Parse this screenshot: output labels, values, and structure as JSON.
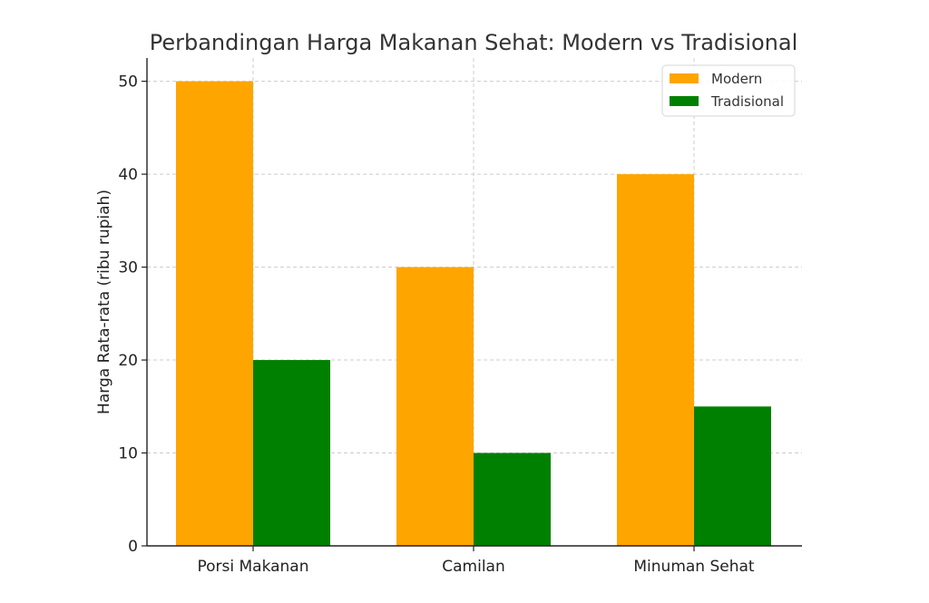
{
  "chart_data": {
    "type": "bar",
    "title": "Perbandingan Harga Makanan Sehat: Modern vs Tradisional",
    "xlabel": "",
    "ylabel": "Harga Rata-rata (ribu rupiah)",
    "categories": [
      "Porsi Makanan",
      "Camilan",
      "Minuman Sehat"
    ],
    "series": [
      {
        "name": "Modern",
        "values": [
          50,
          30,
          40
        ],
        "color": "#FFA500"
      },
      {
        "name": "Tradisional",
        "values": [
          20,
          10,
          15
        ],
        "color": "#008000"
      }
    ],
    "ylim": [
      0,
      52.5
    ],
    "yticks": [
      0,
      10,
      20,
      30,
      40,
      50
    ],
    "grid": true,
    "legend_position": "top-right"
  }
}
